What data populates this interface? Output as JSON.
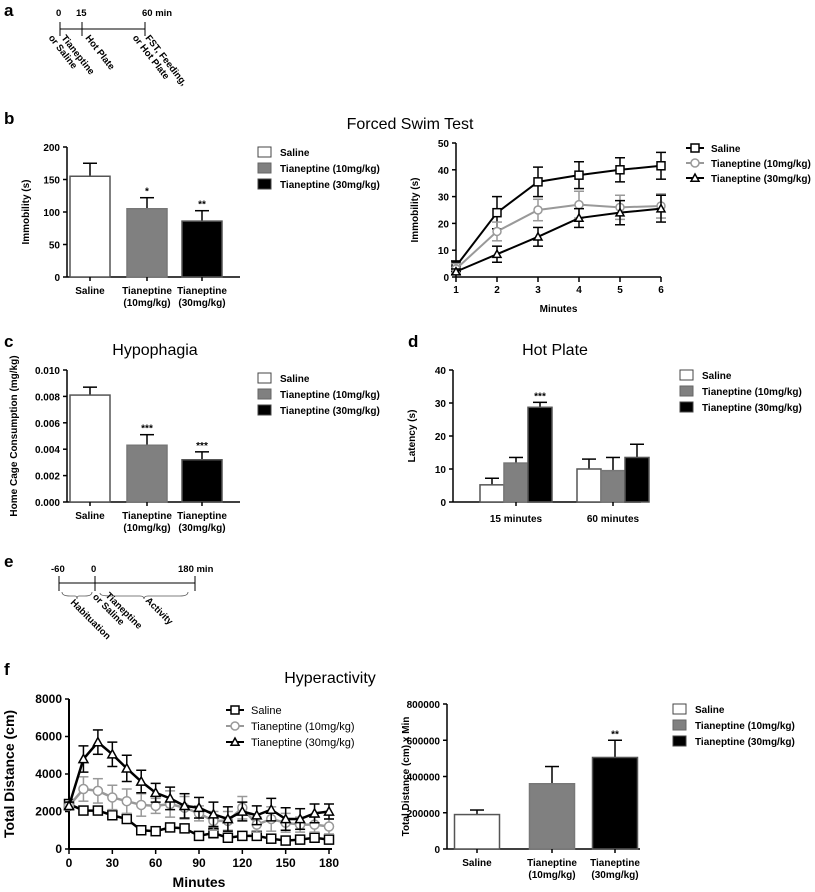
{
  "panels": {
    "a": {
      "letter": "a",
      "ticks": [
        "0",
        "15",
        "60 min"
      ],
      "events": [
        [
          "Tianeptine",
          "or Saline"
        ],
        [
          "Hot Plate"
        ],
        [
          "FST, Feeding,",
          "or Hot Plate"
        ]
      ]
    },
    "b": {
      "letter": "b",
      "title": "Forced Swim Test"
    },
    "c": {
      "letter": "c",
      "title": "Hypophagia"
    },
    "d": {
      "letter": "d",
      "title": "Hot Plate"
    },
    "e": {
      "letter": "e",
      "ticks": [
        "-60",
        "0",
        "180 min"
      ],
      "events": [
        [
          "Habituation"
        ],
        [
          "Tianeptine",
          "or Saline"
        ],
        [
          "Activity"
        ]
      ]
    },
    "f": {
      "letter": "f",
      "title": "Hyperactivity"
    }
  },
  "colors": {
    "saline": "#ffffff",
    "tianeptine_10": "#808080",
    "tianeptine_30": "#000000",
    "line_10": "#999999",
    "stroke": "#000000"
  },
  "chart_data": [
    {
      "id": "b_bar",
      "type": "bar",
      "categories": [
        [
          "Saline"
        ],
        [
          "Tianeptine",
          "(10mg/kg)"
        ],
        [
          "Tianeptine",
          "(30mg/kg)"
        ]
      ],
      "values": [
        155,
        105,
        86
      ],
      "errors": [
        20,
        17,
        16
      ],
      "significance": [
        "",
        "*",
        "**"
      ],
      "ylabel": "Immobility (s)",
      "ylim": [
        0,
        200
      ],
      "yticks": [
        "0",
        "50",
        "100",
        "150",
        "200"
      ],
      "legend": [
        "Saline",
        "Tianeptine (10mg/kg)",
        "Tianeptine (30mg/kg)"
      ],
      "legend_position": "right"
    },
    {
      "id": "b_line",
      "type": "line",
      "x": [
        1,
        2,
        3,
        4,
        5,
        6
      ],
      "xticks": [
        "1",
        "2",
        "3",
        "4",
        "5",
        "6"
      ],
      "xlabel": "Minutes",
      "ylabel": "Immobility (s)",
      "ylim": [
        0,
        50
      ],
      "yticks": [
        "0",
        "10",
        "20",
        "30",
        "40",
        "50"
      ],
      "series": [
        {
          "name": "Saline",
          "marker": "square",
          "values": [
            4,
            24,
            35.5,
            38,
            40,
            41.5
          ],
          "errors": [
            2,
            6,
            5.5,
            5,
            4.5,
            5
          ]
        },
        {
          "name": "Tianeptine (10mg/kg)",
          "marker": "circle",
          "values": [
            3,
            17,
            25,
            27,
            26,
            26.5
          ],
          "errors": [
            2,
            3.5,
            4,
            5,
            4.5,
            4.5
          ]
        },
        {
          "name": "Tianeptine (30mg/kg)",
          "marker": "triangle",
          "values": [
            2,
            8.5,
            15,
            22,
            24,
            25.5
          ],
          "errors": [
            1,
            3,
            3.5,
            3.5,
            4.5,
            5
          ]
        }
      ],
      "legend_position": "right"
    },
    {
      "id": "c_bar",
      "type": "bar",
      "categories": [
        [
          "Saline"
        ],
        [
          "Tianeptine",
          "(10mg/kg)"
        ],
        [
          "Tianeptine",
          "(30mg/kg)"
        ]
      ],
      "values": [
        0.0081,
        0.0043,
        0.0032
      ],
      "errors": [
        0.0006,
        0.0008,
        0.0006
      ],
      "significance": [
        "",
        "***",
        "***"
      ],
      "ylabel": "Home Cage Consumption (mg/kg)",
      "ylim": [
        0,
        0.01
      ],
      "yticks": [
        "0.000",
        "0.002",
        "0.004",
        "0.006",
        "0.008",
        "0.010"
      ],
      "legend": [
        "Saline",
        "Tianeptine (10mg/kg)",
        "Tianeptine (30mg/kg)"
      ],
      "legend_position": "right"
    },
    {
      "id": "d_bar",
      "type": "bar",
      "categories": [
        "15 minutes",
        "60 minutes"
      ],
      "series": [
        {
          "name": "Saline",
          "values": [
            5.2,
            10
          ],
          "errors": [
            2,
            3
          ],
          "significance": [
            "",
            ""
          ]
        },
        {
          "name": "Tianeptine (10mg/kg)",
          "values": [
            11.8,
            9.5
          ],
          "errors": [
            1.7,
            4
          ],
          "significance": [
            "",
            ""
          ]
        },
        {
          "name": "Tianeptine (30mg/kg)",
          "values": [
            28.7,
            13.5
          ],
          "errors": [
            1.5,
            4
          ],
          "significance": [
            "***",
            ""
          ]
        }
      ],
      "ylabel": "Latency (s)",
      "ylim": [
        0,
        40
      ],
      "yticks": [
        "0",
        "10",
        "20",
        "30",
        "40"
      ],
      "legend_position": "right"
    },
    {
      "id": "f_line",
      "type": "line",
      "x": [
        0,
        10,
        20,
        30,
        40,
        50,
        60,
        70,
        80,
        90,
        100,
        110,
        120,
        130,
        140,
        150,
        160,
        170,
        180
      ],
      "xticks": [
        "0",
        "30",
        "60",
        "90",
        "120",
        "150",
        "180"
      ],
      "xlabel": "Minutes",
      "ylabel": "Total Distance (cm)",
      "ylim": [
        0,
        8000
      ],
      "yticks": [
        "0",
        "2000",
        "4000",
        "6000",
        "8000"
      ],
      "series": [
        {
          "name": "Saline",
          "marker": "square",
          "values": [
            2400,
            2050,
            2050,
            1800,
            1600,
            1000,
            950,
            1150,
            1100,
            700,
            850,
            600,
            700,
            700,
            550,
            450,
            500,
            600,
            500
          ],
          "errors": [
            150,
            100,
            100,
            100,
            120,
            150,
            100,
            150,
            150,
            150,
            250,
            200,
            100,
            150,
            100,
            100,
            150,
            200,
            200
          ]
        },
        {
          "name": "Tianeptine (10mg/kg)",
          "marker": "circle",
          "values": [
            2300,
            3200,
            3100,
            2750,
            2550,
            2350,
            2300,
            2400,
            2200,
            1900,
            1500,
            1500,
            2200,
            1300,
            1600,
            1400,
            1300,
            1300,
            1200
          ],
          "errors": [
            200,
            650,
            650,
            650,
            650,
            600,
            400,
            700,
            600,
            400,
            500,
            500,
            600,
            400,
            650,
            500,
            400,
            400,
            400
          ]
        },
        {
          "name": "Tianeptine (30mg/kg)",
          "marker": "triangle",
          "values": [
            2300,
            4800,
            5700,
            5050,
            4300,
            3600,
            3000,
            2700,
            2300,
            2200,
            1850,
            1600,
            2000,
            1800,
            2100,
            1600,
            1600,
            1900,
            2000
          ],
          "errors": [
            200,
            700,
            650,
            650,
            700,
            600,
            500,
            600,
            650,
            550,
            650,
            650,
            500,
            500,
            600,
            600,
            550,
            500,
            400
          ]
        }
      ],
      "legend_position": "top-right"
    },
    {
      "id": "f_bar",
      "type": "bar",
      "categories": [
        [
          "Saline"
        ],
        [
          "Tianeptine",
          "(10mg/kg)"
        ],
        [
          "Tianeptine",
          "(30mg/kg)"
        ]
      ],
      "values": [
        190000,
        360000,
        505000
      ],
      "errors": [
        25000,
        95000,
        95000
      ],
      "significance": [
        "",
        "",
        "**"
      ],
      "ylabel": "Total Distance (cm) x Min",
      "ylim": [
        0,
        800000
      ],
      "yticks": [
        "0",
        "200000",
        "400000",
        "600000",
        "800000"
      ],
      "legend": [
        "Saline",
        "Tianeptine (10mg/kg)",
        "Tianeptine (30mg/kg)"
      ],
      "legend_position": "right"
    }
  ]
}
